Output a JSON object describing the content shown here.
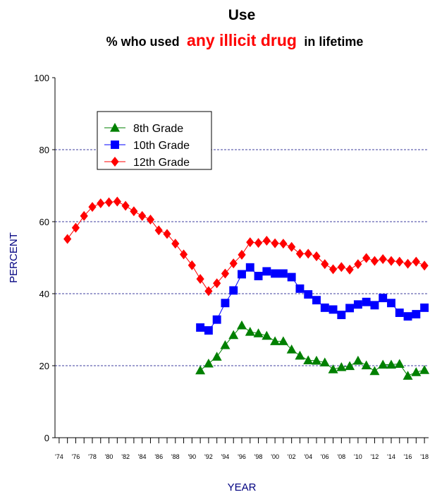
{
  "chart_data": {
    "type": "line",
    "title": "Use",
    "subtitle_parts": [
      "% who used",
      "any illicit drug",
      "in lifetime"
    ],
    "x_label": "YEAR",
    "y_label": "PERCENT",
    "xlim": [
      1973.5,
      2018.5
    ],
    "xticks": [
      {
        "value": 1974,
        "label": "'74"
      },
      {
        "value": 1976,
        "label": "'76"
      },
      {
        "value": 1978,
        "label": "'78"
      },
      {
        "value": 1980,
        "label": "'80"
      },
      {
        "value": 1982,
        "label": "'82"
      },
      {
        "value": 1984,
        "label": "'84"
      },
      {
        "value": 1986,
        "label": "'86"
      },
      {
        "value": 1988,
        "label": "'88"
      },
      {
        "value": 1990,
        "label": "'90"
      },
      {
        "value": 1992,
        "label": "'92"
      },
      {
        "value": 1994,
        "label": "'94"
      },
      {
        "value": 1996,
        "label": "'96"
      },
      {
        "value": 1998,
        "label": "'98"
      },
      {
        "value": 2000,
        "label": "'00"
      },
      {
        "value": 2002,
        "label": "'02"
      },
      {
        "value": 2004,
        "label": "'04"
      },
      {
        "value": 2006,
        "label": "'06"
      },
      {
        "value": 2008,
        "label": "'08"
      },
      {
        "value": 2010,
        "label": "'10"
      },
      {
        "value": 2012,
        "label": "'12"
      },
      {
        "value": 2014,
        "label": "'14"
      },
      {
        "value": 2016,
        "label": "'16"
      },
      {
        "value": 2018,
        "label": "'18"
      }
    ],
    "xminorticks": [
      1975,
      1977,
      1979,
      1981,
      1983,
      1985,
      1987,
      1989,
      1991,
      1993,
      1995,
      1997,
      1999,
      2001,
      2003,
      2005,
      2007,
      2009,
      2011,
      2013,
      2015,
      2017
    ],
    "ylim": [
      0,
      100
    ],
    "yticks": [
      0,
      20,
      40,
      60,
      80,
      100
    ],
    "grid": true,
    "series": [
      {
        "name": "8th Grade",
        "color": "#008000",
        "marker": "triangle",
        "x": [
          1991,
          1992,
          1993,
          1994,
          1995,
          1996,
          1997,
          1998,
          1999,
          2000,
          2001,
          2002,
          2003,
          2004,
          2005,
          2006,
          2007,
          2008,
          2009,
          2010,
          2011,
          2012,
          2013,
          2014,
          2015,
          2016,
          2017,
          2018
        ],
        "values": [
          18.7,
          20.6,
          22.5,
          25.7,
          28.5,
          31.2,
          29.4,
          29.0,
          28.3,
          26.8,
          26.8,
          24.5,
          22.8,
          21.5,
          21.4,
          20.9,
          19.0,
          19.6,
          19.9,
          21.4,
          20.1,
          18.5,
          20.3,
          20.3,
          20.5,
          17.2,
          18.2,
          18.8
        ]
      },
      {
        "name": "10th Grade",
        "color": "#0000ff",
        "marker": "square",
        "x": [
          1991,
          1992,
          1993,
          1994,
          1995,
          1996,
          1997,
          1998,
          1999,
          2000,
          2001,
          2002,
          2003,
          2004,
          2005,
          2006,
          2007,
          2008,
          2009,
          2010,
          2011,
          2012,
          2013,
          2014,
          2015,
          2016,
          2017,
          2018
        ],
        "values": [
          30.6,
          29.8,
          32.8,
          37.4,
          40.9,
          45.4,
          47.3,
          44.9,
          46.2,
          45.6,
          45.6,
          44.6,
          41.4,
          39.8,
          38.2,
          36.1,
          35.6,
          34.1,
          36.0,
          37.0,
          37.7,
          36.8,
          38.8,
          37.4,
          34.7,
          33.7,
          34.3,
          36.1
        ]
      },
      {
        "name": "12th Grade",
        "color": "#ff0000",
        "marker": "diamond",
        "x": [
          1975,
          1976,
          1977,
          1978,
          1979,
          1980,
          1981,
          1982,
          1983,
          1984,
          1985,
          1986,
          1987,
          1988,
          1989,
          1990,
          1991,
          1992,
          1993,
          1994,
          1995,
          1996,
          1997,
          1998,
          1999,
          2000,
          2001,
          2002,
          2003,
          2004,
          2005,
          2006,
          2007,
          2008,
          2009,
          2010,
          2011,
          2012,
          2013,
          2014,
          2015,
          2016,
          2017,
          2018
        ],
        "values": [
          55.2,
          58.3,
          61.6,
          64.1,
          65.1,
          65.4,
          65.6,
          64.4,
          62.9,
          61.6,
          60.6,
          57.6,
          56.6,
          53.9,
          50.9,
          47.9,
          44.1,
          40.7,
          42.9,
          45.6,
          48.4,
          50.8,
          54.3,
          54.1,
          54.7,
          54.0,
          53.9,
          53.0,
          51.1,
          51.1,
          50.4,
          48.2,
          46.8,
          47.4,
          46.7,
          48.2,
          49.9,
          49.1,
          49.6,
          49.1,
          48.9,
          48.3,
          48.9,
          47.8
        ]
      }
    ]
  }
}
